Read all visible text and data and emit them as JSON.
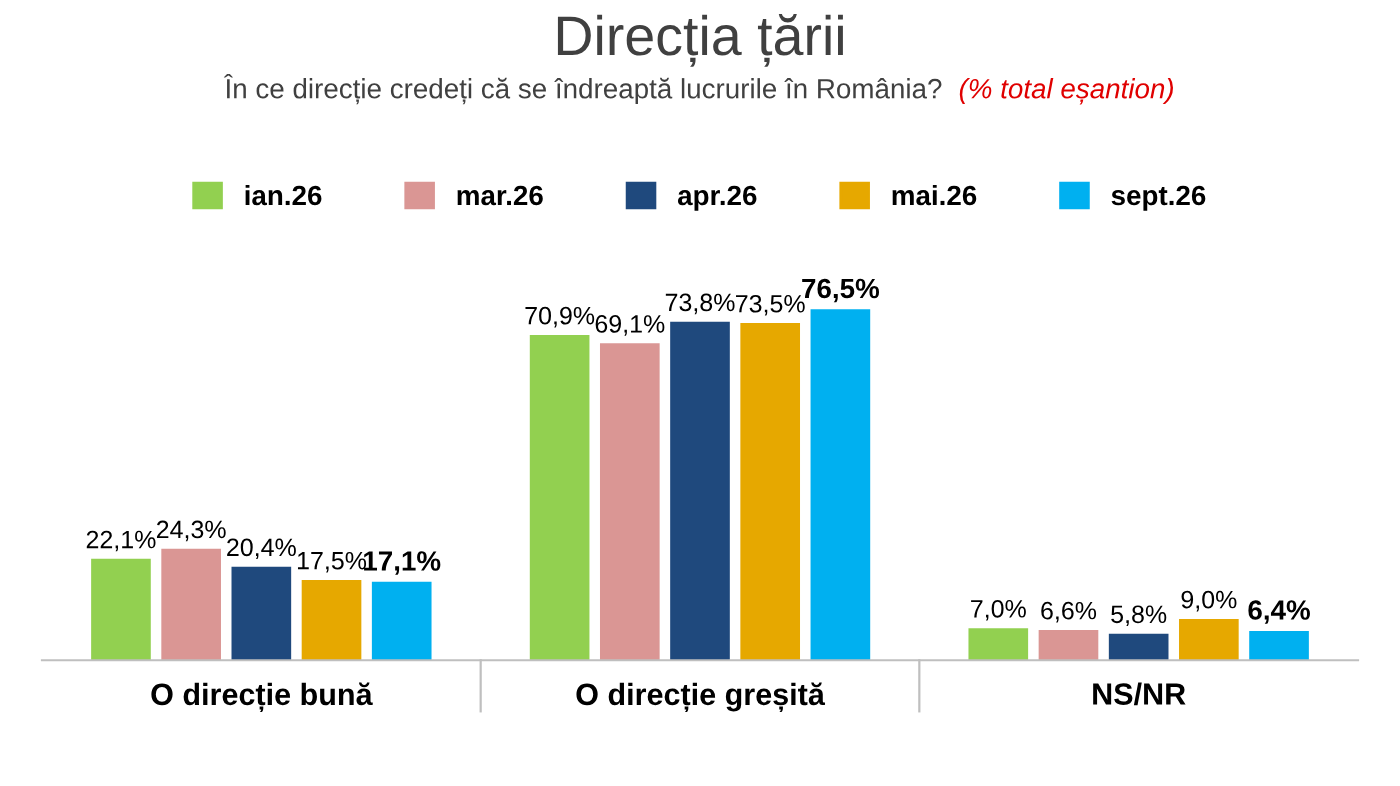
{
  "chart_data": {
    "type": "bar",
    "title": "Direcția țării",
    "subtitle": "În ce direcție credeți că se îndreaptă lucrurile în România?",
    "annotations": [
      "(% total eșantion)"
    ],
    "categories": [
      "O direcție bună",
      "O direcție greșită",
      "NS/NR"
    ],
    "series": [
      {
        "name": "ian.26",
        "color": "#92d050",
        "values": [
          22.1,
          70.9,
          7.0
        ],
        "value_labels": [
          "22,1%",
          "70,9%",
          "7,0%"
        ]
      },
      {
        "name": "mar.26",
        "color": "#da9694",
        "values": [
          24.3,
          69.1,
          6.6
        ],
        "value_labels": [
          "24,3%",
          "69,1%",
          "6,6%"
        ]
      },
      {
        "name": "apr.26",
        "color": "#1f497d",
        "values": [
          20.4,
          73.8,
          5.8
        ],
        "value_labels": [
          "20,4%",
          "73,8%",
          "5,8%"
        ]
      },
      {
        "name": "mai.26",
        "color": "#e6a800",
        "values": [
          17.5,
          73.5,
          9.0
        ],
        "value_labels": [
          "17,5%",
          "73,5%",
          "9,0%"
        ]
      },
      {
        "name": "sept.26",
        "color": "#00b0f0",
        "values": [
          17.1,
          76.5,
          6.4
        ],
        "value_labels": [
          "17,1%",
          "76,5%",
          "6,4%"
        ]
      }
    ],
    "legend": "top",
    "grid": false
  }
}
